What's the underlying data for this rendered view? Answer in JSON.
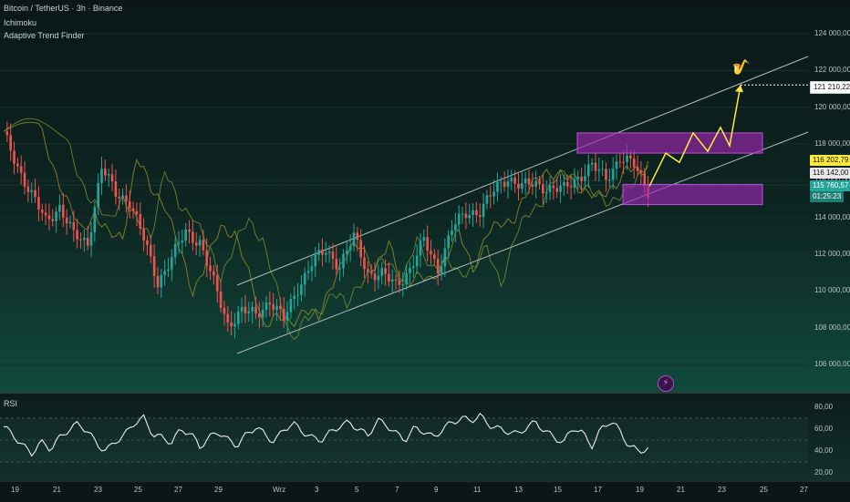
{
  "header": {
    "symbol_line": "Bitcoin / TetherUS · 3h · Binance",
    "indicator_1": "Ichimoku",
    "indicator_2": "Adaptive Trend Finder"
  },
  "rsi": {
    "label": "RSI"
  },
  "target_emoji": "🎷",
  "price_axis": [
    "124 000,00",
    "122 000,00",
    "120 000,00",
    "118 000,00",
    "116 000,00",
    "114 000,00",
    "112 000,00",
    "110 000,00",
    "108 000,00",
    "106 000,00"
  ],
  "rsi_axis": [
    "80,00",
    "60,00",
    "40,00",
    "20,00"
  ],
  "time_axis": [
    "19",
    "21",
    "23",
    "25",
    "27",
    "29",
    "Wrz",
    "3",
    "5",
    "7",
    "9",
    "11",
    "13",
    "15",
    "17",
    "19",
    "21",
    "23",
    "25",
    "27"
  ],
  "price_tags": {
    "target": "121 210,22",
    "tag_a": "116 202,79",
    "tag_b": "116 142,00",
    "last_price": "115 760,57",
    "countdown": "01:25:23"
  },
  "colors": {
    "up": "#26a69a",
    "down": "#ef5350",
    "zone": "#9c27b0",
    "projection": "#ffeb3b",
    "channel": "#b0bcbc"
  },
  "chart_data": {
    "type": "candlestick",
    "ylim": [
      105000,
      125000
    ],
    "anchors": [
      [
        0,
        118500
      ],
      [
        4,
        116800
      ],
      [
        8,
        115200
      ],
      [
        12,
        113800
      ],
      [
        16,
        114600
      ],
      [
        20,
        113000
      ],
      [
        24,
        112600
      ],
      [
        28,
        116700
      ],
      [
        32,
        115300
      ],
      [
        36,
        114900
      ],
      [
        40,
        112800
      ],
      [
        44,
        110500
      ],
      [
        48,
        111800
      ],
      [
        52,
        113200
      ],
      [
        56,
        112700
      ],
      [
        60,
        110400
      ],
      [
        64,
        108200
      ],
      [
        68,
        108900
      ],
      [
        72,
        108700
      ],
      [
        76,
        109500
      ],
      [
        80,
        108400
      ],
      [
        84,
        110200
      ],
      [
        88,
        111500
      ],
      [
        92,
        112200
      ],
      [
        96,
        111400
      ],
      [
        100,
        112900
      ],
      [
        104,
        111000
      ],
      [
        108,
        110900
      ],
      [
        112,
        110300
      ],
      [
        116,
        111200
      ],
      [
        120,
        112700
      ],
      [
        124,
        111200
      ],
      [
        128,
        113400
      ],
      [
        132,
        114200
      ],
      [
        136,
        114400
      ],
      [
        140,
        115400
      ],
      [
        144,
        116200
      ],
      [
        148,
        115700
      ],
      [
        152,
        115800
      ],
      [
        156,
        115600
      ],
      [
        160,
        115500
      ],
      [
        164,
        116200
      ],
      [
        168,
        116800
      ],
      [
        172,
        116100
      ],
      [
        176,
        117300
      ],
      [
        180,
        116800
      ],
      [
        184,
        115500
      ]
    ],
    "zones": [
      {
        "top": 118600,
        "bottom": 117500
      },
      {
        "top": 115800,
        "bottom": 114700
      }
    ],
    "projection": [
      115700,
      117500,
      117000,
      118600,
      117600,
      118900,
      117900,
      121210
    ],
    "rsi": [
      62,
      55,
      45,
      38,
      48,
      42,
      52,
      60,
      65,
      58,
      46,
      40,
      49,
      55,
      66,
      70,
      55,
      52,
      48,
      60,
      56,
      44,
      52,
      58,
      50,
      45,
      55,
      62,
      55,
      48,
      60,
      65,
      58,
      52,
      50,
      57,
      63,
      66,
      60,
      54,
      68,
      64,
      56,
      50,
      61,
      58,
      52,
      60,
      66,
      70,
      68,
      72,
      64,
      60,
      58,
      55,
      62,
      66,
      58,
      52,
      48,
      62,
      56,
      45,
      60,
      68,
      58,
      44,
      40,
      42
    ]
  }
}
